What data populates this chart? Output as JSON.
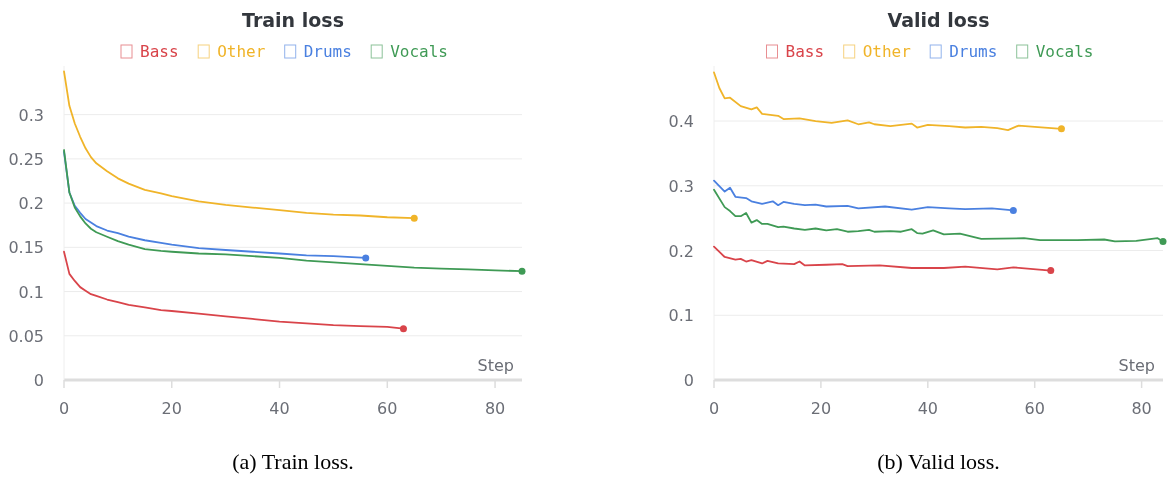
{
  "chart_data": [
    {
      "type": "line",
      "title": "Train loss",
      "xlabel": "Step",
      "annotations": [
        "(a) Train loss."
      ],
      "legend": "top",
      "grid": "y",
      "marker": "none",
      "line_style": "solid",
      "xlim": [
        0,
        85
      ],
      "xticks": [
        0,
        20,
        40,
        60,
        80
      ],
      "ylim": [
        0,
        0.355
      ],
      "yticks": [
        0,
        0.05,
        0.1,
        0.15,
        0.2,
        0.25,
        0.3
      ],
      "series": [
        {
          "name": "Bass",
          "color": "#d9444a",
          "x": [
            0,
            1,
            2,
            3,
            4,
            5,
            6,
            8,
            10,
            12,
            15,
            18,
            20,
            25,
            30,
            35,
            40,
            45,
            50,
            55,
            60,
            63
          ],
          "values": [
            0.145,
            0.12,
            0.112,
            0.105,
            0.101,
            0.097,
            0.095,
            0.091,
            0.088,
            0.085,
            0.082,
            0.079,
            0.078,
            0.075,
            0.072,
            0.069,
            0.066,
            0.064,
            0.062,
            0.061,
            0.06,
            0.058
          ]
        },
        {
          "name": "Other",
          "color": "#f0b429",
          "x": [
            0,
            1,
            2,
            3,
            4,
            5,
            6,
            8,
            10,
            12,
            15,
            18,
            20,
            25,
            30,
            35,
            40,
            45,
            50,
            55,
            60,
            65
          ],
          "values": [
            0.349,
            0.31,
            0.29,
            0.275,
            0.262,
            0.252,
            0.245,
            0.236,
            0.228,
            0.222,
            0.215,
            0.211,
            0.208,
            0.202,
            0.198,
            0.195,
            0.192,
            0.189,
            0.187,
            0.186,
            0.184,
            0.183
          ]
        },
        {
          "name": "Drums",
          "color": "#4a80e0",
          "x": [
            0,
            1,
            2,
            3,
            4,
            5,
            6,
            8,
            10,
            12,
            15,
            18,
            20,
            25,
            30,
            35,
            40,
            45,
            50,
            56
          ],
          "values": [
            0.258,
            0.212,
            0.197,
            0.189,
            0.182,
            0.178,
            0.174,
            0.169,
            0.166,
            0.162,
            0.158,
            0.155,
            0.153,
            0.149,
            0.147,
            0.145,
            0.143,
            0.141,
            0.14,
            0.138
          ]
        },
        {
          "name": "Vocals",
          "color": "#3f9a55",
          "x": [
            0,
            1,
            2,
            3,
            4,
            5,
            6,
            8,
            10,
            12,
            15,
            18,
            20,
            25,
            30,
            35,
            40,
            45,
            50,
            55,
            60,
            65,
            70,
            75,
            80,
            85
          ],
          "values": [
            0.26,
            0.212,
            0.195,
            0.185,
            0.177,
            0.171,
            0.167,
            0.162,
            0.157,
            0.153,
            0.148,
            0.146,
            0.145,
            0.143,
            0.142,
            0.14,
            0.138,
            0.135,
            0.133,
            0.131,
            0.129,
            0.127,
            0.126,
            0.125,
            0.124,
            0.123
          ]
        }
      ]
    },
    {
      "type": "line",
      "title": "Valid loss",
      "xlabel": "Step",
      "annotations": [
        "(b) Valid loss."
      ],
      "legend": "top",
      "grid": "y",
      "marker": "none",
      "line_style": "solid",
      "xlim": [
        0,
        84
      ],
      "xticks": [
        0,
        20,
        40,
        60,
        80
      ],
      "ylim": [
        0,
        0.485
      ],
      "yticks": [
        0,
        0.1,
        0.2,
        0.3,
        0.4
      ],
      "series": [
        {
          "name": "Bass",
          "color": "#d9444a",
          "x": [
            0,
            2,
            4,
            5,
            6,
            7,
            9,
            10,
            12,
            15,
            16,
            17,
            21,
            24,
            25,
            31,
            37,
            43,
            47,
            53,
            56,
            63
          ],
          "values": [
            0.206,
            0.19,
            0.186,
            0.187,
            0.183,
            0.185,
            0.18,
            0.184,
            0.18,
            0.179,
            0.183,
            0.177,
            0.178,
            0.179,
            0.176,
            0.177,
            0.173,
            0.173,
            0.175,
            0.171,
            0.174,
            0.169
          ]
        },
        {
          "name": "Other",
          "color": "#f0b429",
          "x": [
            0,
            1,
            2,
            3,
            5,
            7,
            8,
            9,
            12,
            13,
            16,
            19,
            22,
            25,
            27,
            29,
            30,
            33,
            37,
            38,
            40,
            44,
            47,
            50,
            53,
            55,
            57,
            60,
            65
          ],
          "values": [
            0.475,
            0.451,
            0.435,
            0.436,
            0.423,
            0.418,
            0.421,
            0.411,
            0.408,
            0.403,
            0.404,
            0.4,
            0.397,
            0.401,
            0.395,
            0.398,
            0.395,
            0.392,
            0.396,
            0.39,
            0.394,
            0.392,
            0.39,
            0.391,
            0.389,
            0.386,
            0.393,
            0.391,
            0.388
          ]
        },
        {
          "name": "Drums",
          "color": "#4a80e0",
          "x": [
            0,
            2,
            3,
            4,
            6,
            7,
            9,
            11,
            12,
            13,
            15,
            17,
            19,
            21,
            25,
            27,
            32,
            37,
            40,
            44,
            47,
            52,
            56
          ],
          "values": [
            0.308,
            0.291,
            0.297,
            0.283,
            0.281,
            0.276,
            0.272,
            0.276,
            0.27,
            0.275,
            0.272,
            0.27,
            0.271,
            0.268,
            0.269,
            0.265,
            0.268,
            0.263,
            0.267,
            0.265,
            0.264,
            0.265,
            0.262
          ]
        },
        {
          "name": "Vocals",
          "color": "#3f9a55",
          "x": [
            0,
            2,
            3,
            4,
            5,
            6,
            7,
            8,
            9,
            10,
            12,
            13,
            15,
            17,
            19,
            21,
            23,
            25,
            27,
            29,
            30,
            33,
            35,
            37,
            38,
            39,
            41,
            43,
            46,
            50,
            58,
            61,
            68,
            73,
            75,
            79,
            83,
            84
          ],
          "values": [
            0.294,
            0.267,
            0.261,
            0.253,
            0.253,
            0.258,
            0.243,
            0.247,
            0.241,
            0.241,
            0.236,
            0.237,
            0.234,
            0.232,
            0.234,
            0.231,
            0.233,
            0.229,
            0.23,
            0.232,
            0.229,
            0.23,
            0.229,
            0.233,
            0.227,
            0.226,
            0.231,
            0.225,
            0.226,
            0.218,
            0.219,
            0.216,
            0.216,
            0.217,
            0.214,
            0.215,
            0.219,
            0.214
          ]
        }
      ]
    }
  ]
}
